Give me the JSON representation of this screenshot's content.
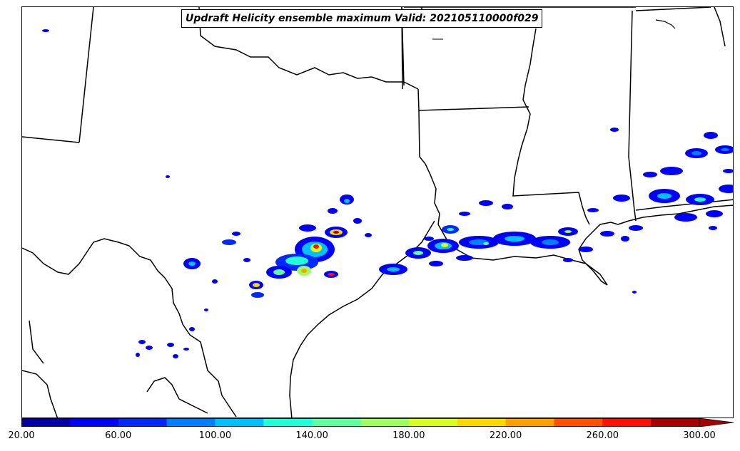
{
  "title": "Updraft Helicity ensemble maximum Valid: 202105110000f029",
  "colorbar": {
    "min": 20,
    "max": 300,
    "step": 20,
    "colors": [
      "#0000a8",
      "#0000ff",
      "#0028ff",
      "#0080ff",
      "#00c0ff",
      "#20ffd8",
      "#60ffa0",
      "#a0ff60",
      "#d8ff20",
      "#ffd800",
      "#ffa000",
      "#ff5000",
      "#ff1000",
      "#a80000"
    ],
    "extend": "max",
    "tick_labels": [
      "20.00",
      "60.00",
      "100.00",
      "140.00",
      "180.00",
      "220.00",
      "260.00",
      "300.00"
    ],
    "tick_values": [
      20,
      60,
      100,
      140,
      180,
      220,
      260,
      300
    ]
  },
  "map": {
    "region": "Texas / Gulf Coast",
    "storm_field": "updraft helicity"
  }
}
